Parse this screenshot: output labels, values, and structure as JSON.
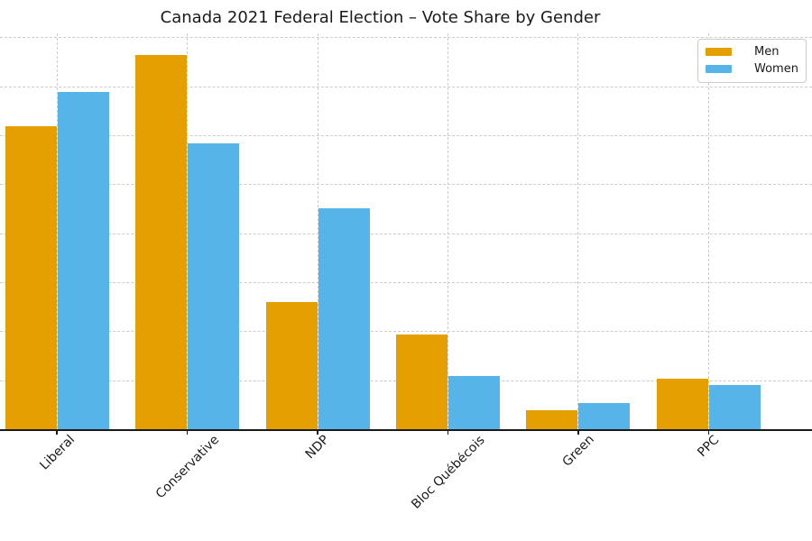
{
  "chart_data": {
    "type": "bar",
    "title": "Canada 2021 Federal Election – Vote Share by Gender",
    "categories": [
      "Liberal",
      "Conservative",
      "NDP",
      "Bloc Québécois",
      "Green",
      "PPC"
    ],
    "series": [
      {
        "name": "Men",
        "color": "#E69F00",
        "values": [
          31.0,
          38.2,
          13.0,
          9.7,
          2.0,
          5.2
        ]
      },
      {
        "name": "Women",
        "color": "#56B4E9",
        "values": [
          34.5,
          29.2,
          22.6,
          5.5,
          2.7,
          4.6
        ]
      }
    ],
    "xlabel": "",
    "ylabel": "",
    "ylim": [
      0,
      40.5
    ],
    "gridline_interval": 5,
    "gridline_max": 40,
    "grid": "both-dashed",
    "y_tick_labels_visible": false,
    "x_tick_label_rotation": 45,
    "legend_position": "upper-right",
    "colors": {
      "axis": "#1a1a1a",
      "grid": "#cccccc",
      "background": "#ffffff",
      "text": "#1a1a1a"
    }
  }
}
